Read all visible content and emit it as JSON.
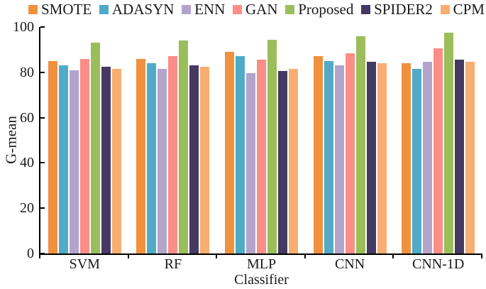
{
  "chart_data": {
    "type": "bar",
    "xlabel": "Classifier",
    "ylabel": "G-mean",
    "ylim": [
      0,
      100
    ],
    "yticks": [
      0,
      20,
      40,
      60,
      80,
      100
    ],
    "grid": false,
    "legend_position": "top",
    "categories": [
      "SVM",
      "RF",
      "MLP",
      "CNN",
      "CNN-1D"
    ],
    "series": [
      {
        "name": "SMOTE",
        "color": "#F0913F",
        "values": [
          85,
          86,
          89,
          87,
          84
        ]
      },
      {
        "name": "ADASYN",
        "color": "#4FABC7",
        "values": [
          83,
          84,
          87,
          85,
          81.5
        ]
      },
      {
        "name": "ENN",
        "color": "#B2A4CB",
        "values": [
          81,
          81.5,
          79.5,
          83,
          84.5
        ]
      },
      {
        "name": "GAN",
        "color": "#FC8D87",
        "values": [
          86,
          87,
          85.5,
          88.5,
          90.5
        ]
      },
      {
        "name": "Proposed",
        "color": "#9BBE5B",
        "values": [
          93,
          94,
          94.5,
          96,
          97.5
        ]
      },
      {
        "name": "SPIDER2",
        "color": "#463962",
        "values": [
          82.5,
          83,
          80.5,
          84.5,
          85.5
        ]
      },
      {
        "name": "CPM",
        "color": "#F8AE71",
        "values": [
          81.5,
          82.5,
          81.5,
          84,
          84.5
        ]
      }
    ]
  }
}
